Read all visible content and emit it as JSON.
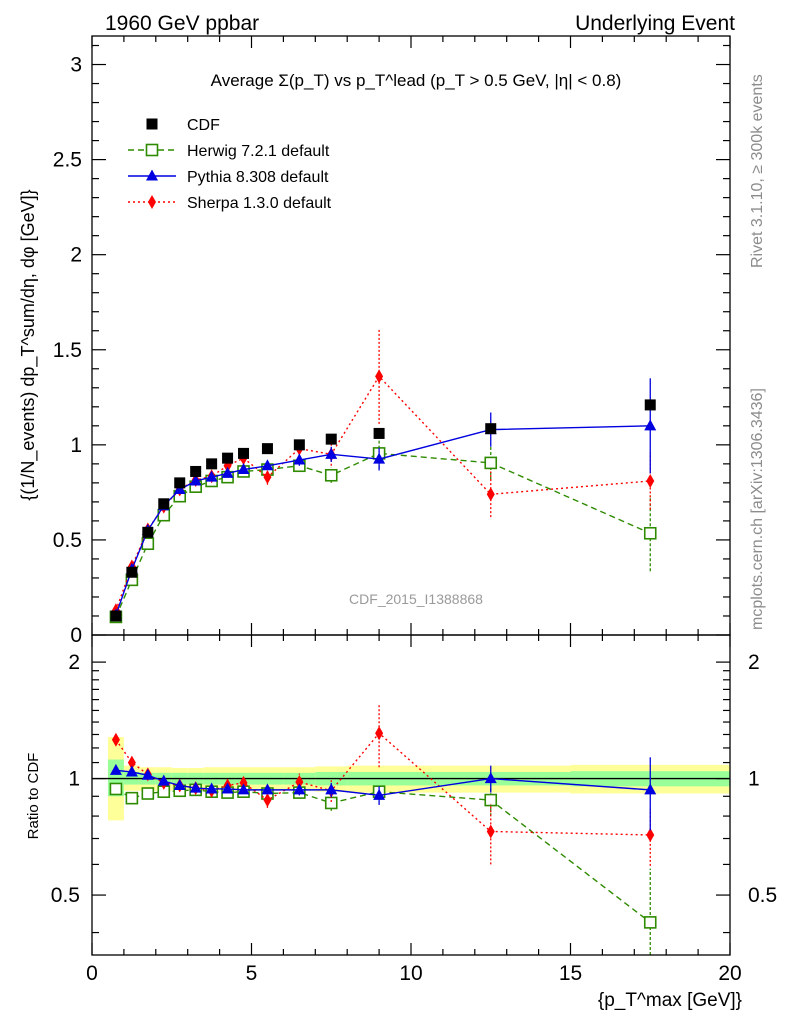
{
  "header": {
    "left": "1960 GeV ppbar",
    "right": "Underlying Event"
  },
  "side_notes": {
    "rivet": "Rivet 3.1.10, ≥ 300k events",
    "mcplots": "mcplots.cern.ch [arXiv:1306.3436]"
  },
  "watermark": "CDF_2015_I1388868",
  "colors": {
    "CDF": "#000000",
    "Herwig": "#2e8b00",
    "Pythia": "#0000e0",
    "Sherpa": "#ff0000",
    "band_yellow": "#ffff99",
    "band_green": "#99ff99"
  },
  "chart_data": [
    {
      "type": "scatter",
      "title": "Average Σ(p_T) vs p_T^lead (p_T > 0.5 GeV, |η| < 0.8)",
      "ylabel": "{(1/N_events) dp_T^sum/dη, dφ [GeV]}",
      "xlim": [
        0,
        20
      ],
      "ylim": [
        0,
        3.15
      ],
      "yticks": [
        0,
        0.5,
        1,
        1.5,
        2,
        2.5,
        3
      ],
      "ytick_labels": [
        "0",
        "0.5",
        "1",
        "1.5",
        "2",
        "2.5",
        "3"
      ],
      "legend_position": "top-left",
      "series": [
        {
          "name": "CDF",
          "marker": "square",
          "x": [
            0.75,
            1.25,
            1.75,
            2.25,
            2.75,
            3.25,
            3.75,
            4.25,
            4.75,
            5.5,
            6.5,
            7.5,
            9.0,
            12.5,
            17.5
          ],
          "y": [
            0.1,
            0.33,
            0.54,
            0.69,
            0.8,
            0.86,
            0.9,
            0.93,
            0.955,
            0.98,
            1.0,
            1.03,
            1.06,
            1.085,
            1.21
          ],
          "yerr": [
            0.0,
            0.0,
            0.0,
            0.0,
            0.0,
            0.0,
            0.0,
            0.0,
            0.0,
            0.0,
            0.0,
            0.0,
            0.0,
            0.0,
            0.0
          ]
        },
        {
          "name": "Herwig 7.2.1 default",
          "marker": "open-square",
          "line": "dashed",
          "x": [
            0.75,
            1.25,
            1.75,
            2.25,
            2.75,
            3.25,
            3.75,
            4.25,
            4.75,
            5.5,
            6.5,
            7.5,
            9.0,
            12.5,
            17.5
          ],
          "y": [
            0.095,
            0.29,
            0.48,
            0.63,
            0.73,
            0.78,
            0.81,
            0.83,
            0.86,
            0.87,
            0.89,
            0.84,
            0.955,
            0.905,
            0.535
          ],
          "yerr": [
            0.005,
            0.01,
            0.01,
            0.01,
            0.015,
            0.015,
            0.015,
            0.015,
            0.02,
            0.02,
            0.03,
            0.04,
            0.08,
            0.09,
            0.2
          ]
        },
        {
          "name": "Pythia 8.308 default",
          "marker": "triangle",
          "line": "solid",
          "x": [
            0.75,
            1.25,
            1.75,
            2.25,
            2.75,
            3.25,
            3.75,
            4.25,
            4.75,
            5.5,
            6.5,
            7.5,
            9.0,
            12.5,
            17.5
          ],
          "y": [
            0.105,
            0.345,
            0.55,
            0.68,
            0.765,
            0.81,
            0.83,
            0.85,
            0.87,
            0.89,
            0.92,
            0.95,
            0.925,
            1.08,
            1.1
          ],
          "yerr": [
            0.005,
            0.01,
            0.01,
            0.01,
            0.015,
            0.015,
            0.015,
            0.015,
            0.02,
            0.02,
            0.03,
            0.04,
            0.06,
            0.09,
            0.25
          ]
        },
        {
          "name": "Sherpa 1.3.0 default",
          "marker": "diamond",
          "line": "dotted",
          "x": [
            0.75,
            1.25,
            1.75,
            2.25,
            2.75,
            3.25,
            3.75,
            4.25,
            4.75,
            5.5,
            6.5,
            7.5,
            9.0,
            12.5,
            17.5
          ],
          "y": [
            0.13,
            0.36,
            0.555,
            0.675,
            0.765,
            0.815,
            0.835,
            0.89,
            0.93,
            0.83,
            0.98,
            0.95,
            1.36,
            0.74,
            0.81
          ],
          "yerr": [
            0.005,
            0.01,
            0.01,
            0.015,
            0.015,
            0.02,
            0.02,
            0.03,
            0.03,
            0.04,
            0.05,
            0.06,
            0.25,
            0.12,
            0.15
          ]
        }
      ]
    },
    {
      "type": "scatter",
      "ylabel": "Ratio to CDF",
      "xlabel": "{p_T^max [GeV]}",
      "xlim": [
        0,
        20
      ],
      "ylim": [
        0.35,
        2.35
      ],
      "xticks": [
        0,
        5,
        10,
        15,
        20
      ],
      "xtick_labels": [
        "0",
        "5",
        "10",
        "15",
        "20"
      ],
      "yticks": [
        0.5,
        1,
        2
      ],
      "ytick_labels": [
        "0.5",
        "1",
        "2"
      ],
      "reference_line": 1.0,
      "bands": {
        "x_edges": [
          0.5,
          1.0,
          1.5,
          2.0,
          2.5,
          3.0,
          3.5,
          4.0,
          4.5,
          5.0,
          6.0,
          7.0,
          8.0,
          10.0,
          15.0,
          20.0
        ],
        "yellow": [
          [
            0.78,
            1.28
          ],
          [
            0.93,
            1.08
          ],
          [
            0.93,
            1.07
          ],
          [
            0.93,
            1.07
          ],
          [
            0.935,
            1.065
          ],
          [
            0.935,
            1.065
          ],
          [
            0.93,
            1.07
          ],
          [
            0.93,
            1.07
          ],
          [
            0.93,
            1.07
          ],
          [
            0.93,
            1.07
          ],
          [
            0.93,
            1.07
          ],
          [
            0.925,
            1.075
          ],
          [
            0.92,
            1.08
          ],
          [
            0.92,
            1.08
          ],
          [
            0.915,
            1.085
          ]
        ],
        "green": [
          [
            0.9,
            1.12
          ],
          [
            0.965,
            1.04
          ],
          [
            0.965,
            1.035
          ],
          [
            0.965,
            1.035
          ],
          [
            0.965,
            1.035
          ],
          [
            0.965,
            1.035
          ],
          [
            0.965,
            1.035
          ],
          [
            0.965,
            1.035
          ],
          [
            0.965,
            1.035
          ],
          [
            0.965,
            1.035
          ],
          [
            0.965,
            1.035
          ],
          [
            0.96,
            1.04
          ],
          [
            0.96,
            1.04
          ],
          [
            0.96,
            1.04
          ],
          [
            0.955,
            1.045
          ]
        ]
      },
      "series": [
        {
          "name": "Herwig 7.2.1 default",
          "x": [
            0.75,
            1.25,
            1.75,
            2.25,
            2.75,
            3.25,
            3.75,
            4.25,
            4.75,
            5.5,
            6.5,
            7.5,
            9.0,
            12.5,
            17.5
          ],
          "y": [
            0.94,
            0.89,
            0.915,
            0.925,
            0.93,
            0.935,
            0.925,
            0.92,
            0.925,
            0.915,
            0.92,
            0.865,
            0.925,
            0.88,
            0.425
          ],
          "yerr": [
            0.02,
            0.01,
            0.01,
            0.01,
            0.01,
            0.015,
            0.015,
            0.015,
            0.015,
            0.02,
            0.03,
            0.04,
            0.04,
            0.08,
            0.16
          ]
        },
        {
          "name": "Pythia 8.308 default",
          "x": [
            0.75,
            1.25,
            1.75,
            2.25,
            2.75,
            3.25,
            3.75,
            4.25,
            4.75,
            5.5,
            6.5,
            7.5,
            9.0,
            12.5,
            17.5
          ],
          "y": [
            1.05,
            1.04,
            1.02,
            0.985,
            0.96,
            0.945,
            0.94,
            0.94,
            0.935,
            0.935,
            0.935,
            0.935,
            0.905,
            1.0,
            0.935
          ],
          "yerr": [
            0.01,
            0.01,
            0.01,
            0.01,
            0.015,
            0.015,
            0.015,
            0.015,
            0.02,
            0.02,
            0.03,
            0.04,
            0.05,
            0.08,
            0.2
          ]
        },
        {
          "name": "Sherpa 1.3.0 default",
          "x": [
            0.75,
            1.25,
            1.75,
            2.25,
            2.75,
            3.25,
            3.75,
            4.25,
            4.75,
            5.5,
            6.5,
            7.5,
            9.0,
            12.5,
            17.5
          ],
          "y": [
            1.26,
            1.1,
            1.025,
            0.975,
            0.96,
            0.945,
            0.93,
            0.96,
            0.975,
            0.88,
            0.98,
            0.93,
            1.31,
            0.73,
            0.715
          ],
          "yerr": [
            0.02,
            0.02,
            0.02,
            0.02,
            0.02,
            0.025,
            0.025,
            0.03,
            0.03,
            0.04,
            0.05,
            0.06,
            0.24,
            0.13,
            0.12
          ]
        }
      ]
    }
  ]
}
